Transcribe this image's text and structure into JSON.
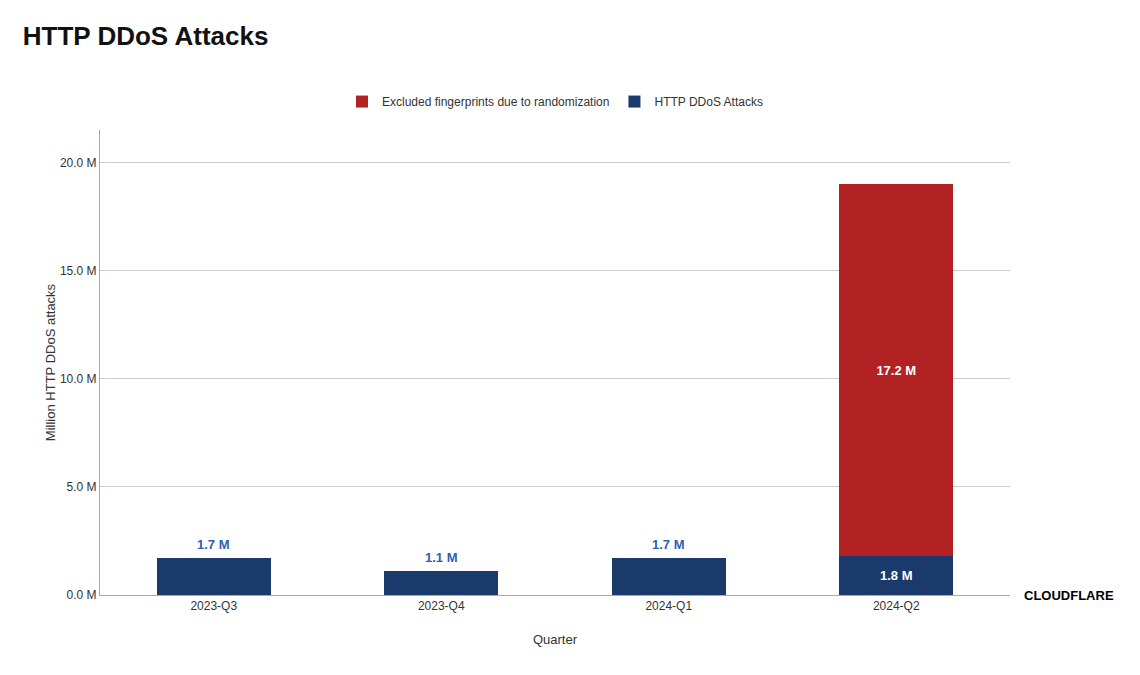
{
  "chart_data": {
    "type": "bar",
    "stacked": true,
    "title": "HTTP DDoS Attacks",
    "xlabel": "Quarter",
    "ylabel": "Million HTTP DDoS attacks",
    "categories": [
      "2023-Q3",
      "2023-Q4",
      "2024-Q1",
      "2024-Q2"
    ],
    "series": [
      {
        "name": "HTTP DDoS Attacks",
        "color": "#1a3a6b",
        "values": [
          1.7,
          1.1,
          1.7,
          1.8
        ],
        "value_labels": [
          "1.7 M",
          "1.1 M",
          "1.7 M",
          "1.8 M"
        ]
      },
      {
        "name": "Excluded fingerprints due to randomization",
        "color": "#b22222",
        "values": [
          0.0,
          0.0,
          0.0,
          17.2
        ],
        "value_labels": [
          null,
          null,
          null,
          "17.2 M"
        ]
      }
    ],
    "ylim": [
      0,
      21.5
    ],
    "yticks": [
      {
        "value": 0.0,
        "label": "0.0 M"
      },
      {
        "value": 5.0,
        "label": "5.0 M"
      },
      {
        "value": 10.0,
        "label": "10.0 M"
      },
      {
        "value": 15.0,
        "label": "15.0 M"
      },
      {
        "value": 20.0,
        "label": "20.0 M"
      }
    ],
    "grid": true,
    "legend": "top",
    "data_labels": true,
    "annotations": [
      {
        "text": "CLOUDFLARE"
      }
    ]
  }
}
